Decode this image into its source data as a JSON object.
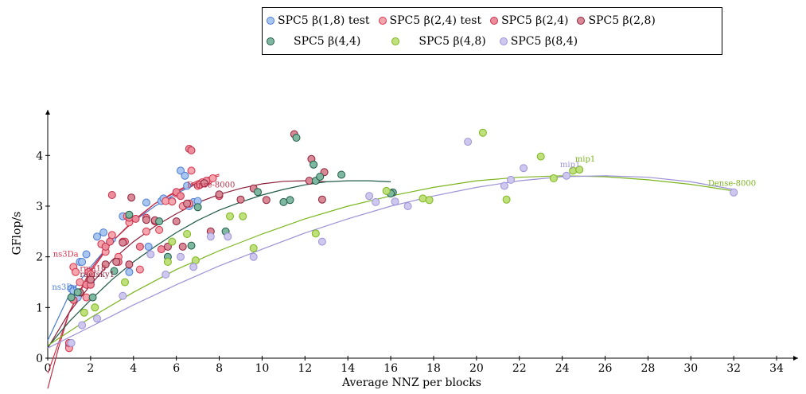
{
  "chart_data": {
    "type": "scatter",
    "title": "",
    "xlabel": "Average NNZ per blocks",
    "ylabel": "GFlop/s",
    "xlim": [
      0,
      35
    ],
    "ylim": [
      0,
      4.9
    ],
    "xticks": [
      0,
      2,
      4,
      6,
      8,
      10,
      12,
      14,
      16,
      18,
      20,
      22,
      24,
      26,
      28,
      30,
      32,
      34
    ],
    "yticks": [
      0,
      1,
      2,
      3,
      4
    ],
    "grid": false,
    "legend_position": "top",
    "series": [
      {
        "name": "SPC5 β(1,8) test",
        "color": "#4a7bd0",
        "fill": "#a9c6f0",
        "points": [
          [
            1,
            0.25
          ],
          [
            1.1,
            1.37
          ],
          [
            1.2,
            1.33
          ],
          [
            1.3,
            1.18
          ],
          [
            1.4,
            1.2
          ],
          [
            1.5,
            1.9
          ],
          [
            1.6,
            1.9
          ],
          [
            1.8,
            2.05
          ],
          [
            2,
            1.5
          ],
          [
            2.3,
            2.4
          ],
          [
            2.5,
            2.25
          ],
          [
            2.6,
            2.48
          ],
          [
            3,
            2.35
          ],
          [
            3.5,
            2.8
          ],
          [
            3.8,
            1.7
          ],
          [
            4.6,
            3.07
          ],
          [
            4.7,
            2.2
          ],
          [
            5.3,
            3.1
          ],
          [
            5.4,
            3.15
          ],
          [
            5.8,
            3.1
          ],
          [
            6.2,
            3.7
          ],
          [
            6.4,
            3.6
          ],
          [
            6.5,
            3.4
          ],
          [
            6.6,
            3.0
          ],
          [
            6.8,
            3.08
          ],
          [
            7.0,
            3.1
          ]
        ],
        "fit": [
          [
            0,
            0.35
          ],
          [
            1,
            1.25
          ],
          [
            2,
            1.8
          ],
          [
            3,
            2.3
          ],
          [
            4,
            2.7
          ],
          [
            5,
            3.0
          ],
          [
            6,
            3.25
          ],
          [
            7,
            3.45
          ]
        ]
      },
      {
        "name": "SPC5 β(2,4) test",
        "color": "#d8324a",
        "fill": "#f4a5ae",
        "points": [
          [
            1,
            0.2
          ],
          [
            1.2,
            1.8
          ],
          [
            1.3,
            1.7
          ],
          [
            1.5,
            1.5
          ],
          [
            1.8,
            1.2
          ],
          [
            1.9,
            1.7
          ],
          [
            2,
            1.65
          ],
          [
            2.5,
            2.25
          ],
          [
            2.7,
            2.1
          ],
          [
            3,
            2.43
          ],
          [
            3.3,
            2.0
          ],
          [
            3.5,
            2.3
          ],
          [
            3.7,
            2.8
          ],
          [
            3.8,
            2.68
          ],
          [
            4.3,
            1.75
          ],
          [
            4.6,
            2.5
          ],
          [
            5.2,
            2.53
          ],
          [
            5.5,
            3.1
          ],
          [
            5.8,
            3.09
          ],
          [
            6.0,
            3.25
          ],
          [
            6.3,
            3.0
          ],
          [
            6.6,
            3.05
          ],
          [
            6.7,
            3.7
          ],
          [
            7.0,
            3.4
          ],
          [
            7.2,
            3.47
          ],
          [
            7.5,
            3.5
          ],
          [
            7.7,
            3.55
          ]
        ],
        "fit": [
          [
            0,
            -0.3
          ],
          [
            0.5,
            0.3
          ],
          [
            1,
            0.9
          ],
          [
            2,
            1.7
          ],
          [
            3,
            2.3
          ],
          [
            4,
            2.7
          ],
          [
            5,
            3.05
          ],
          [
            6,
            3.3
          ],
          [
            7,
            3.5
          ],
          [
            8,
            3.63
          ]
        ]
      },
      {
        "name": "SPC5 β(2,4)",
        "color": "#c0304a",
        "fill": "#ee8c9c",
        "points": [
          [
            1,
            0.3
          ],
          [
            1.2,
            1.15
          ],
          [
            1.5,
            1.3
          ],
          [
            1.8,
            1.45
          ],
          [
            2,
            1.45
          ],
          [
            2.7,
            2.2
          ],
          [
            2.9,
            2.3
          ],
          [
            3,
            3.22
          ],
          [
            3.3,
            1.9
          ],
          [
            3.6,
            2.3
          ],
          [
            3.8,
            2.77
          ],
          [
            4.1,
            2.75
          ],
          [
            4.3,
            2.2
          ],
          [
            4.6,
            2.77
          ],
          [
            5.0,
            2.7
          ],
          [
            5.3,
            2.15
          ],
          [
            6.0,
            3.28
          ],
          [
            6.2,
            3.2
          ],
          [
            6.6,
            4.13
          ],
          [
            6.7,
            4.1
          ],
          [
            7.1,
            3.42
          ],
          [
            7.3,
            3.45
          ],
          [
            7.4,
            3.5
          ],
          [
            8,
            3.2
          ]
        ],
        "fit": [
          [
            0,
            -0.6
          ],
          [
            0.5,
            0.2
          ],
          [
            1,
            0.9
          ],
          [
            2,
            1.75
          ],
          [
            3,
            2.3
          ],
          [
            4,
            2.72
          ],
          [
            5,
            3.05
          ],
          [
            6,
            3.28
          ],
          [
            7,
            3.47
          ],
          [
            8,
            3.6
          ]
        ]
      },
      {
        "name": "SPC5 β(2,8)",
        "color": "#8b1f3a",
        "fill": "#d98a96",
        "points": [
          [
            1.5,
            1.3
          ],
          [
            2,
            1.55
          ],
          [
            2.7,
            1.85
          ],
          [
            3.2,
            1.9
          ],
          [
            3.5,
            2.28
          ],
          [
            3.8,
            1.85
          ],
          [
            3.9,
            3.17
          ],
          [
            4.6,
            2.73
          ],
          [
            5.0,
            2.72
          ],
          [
            5.6,
            2.2
          ],
          [
            6.0,
            2.7
          ],
          [
            6.3,
            2.2
          ],
          [
            6.5,
            3.05
          ],
          [
            7.3,
            3.45
          ],
          [
            7.6,
            2.5
          ],
          [
            8.0,
            3.23
          ],
          [
            9.0,
            3.13
          ],
          [
            9.6,
            3.35
          ],
          [
            10.2,
            3.12
          ],
          [
            11.5,
            4.42
          ],
          [
            12.3,
            3.93
          ],
          [
            12.8,
            3.13
          ],
          [
            12.9,
            3.67
          ],
          [
            12.2,
            3.5
          ]
        ],
        "fit": [
          [
            0,
            0.2
          ],
          [
            1,
            0.9
          ],
          [
            2,
            1.45
          ],
          [
            3,
            1.93
          ],
          [
            4,
            2.3
          ],
          [
            5,
            2.6
          ],
          [
            6,
            2.85
          ],
          [
            7,
            3.07
          ],
          [
            8,
            3.23
          ],
          [
            9,
            3.35
          ],
          [
            10,
            3.44
          ],
          [
            11,
            3.49
          ],
          [
            12,
            3.5
          ],
          [
            13,
            3.48
          ]
        ]
      },
      {
        "name": "SPC5 β(4,4)",
        "color": "#1f5a47",
        "fill": "#7fb8a0",
        "points": [
          [
            1.1,
            1.2
          ],
          [
            1.4,
            1.3
          ],
          [
            2.1,
            1.2
          ],
          [
            3.1,
            1.72
          ],
          [
            3.8,
            2.83
          ],
          [
            5.2,
            2.7
          ],
          [
            5.6,
            2.0
          ],
          [
            6.7,
            2.22
          ],
          [
            7.0,
            2.98
          ],
          [
            8.3,
            2.5
          ],
          [
            9.8,
            3.28
          ],
          [
            11.3,
            3.12
          ],
          [
            11.0,
            3.08
          ],
          [
            11.6,
            4.35
          ],
          [
            12.4,
            3.82
          ],
          [
            12.5,
            3.5
          ],
          [
            12.7,
            3.58
          ],
          [
            13.7,
            3.62
          ],
          [
            16.1,
            3.27
          ],
          [
            16.0,
            3.25
          ]
        ],
        "fit": [
          [
            0,
            0.22
          ],
          [
            1,
            0.72
          ],
          [
            2,
            1.15
          ],
          [
            3,
            1.55
          ],
          [
            4,
            1.9
          ],
          [
            5,
            2.2
          ],
          [
            6,
            2.48
          ],
          [
            7,
            2.72
          ],
          [
            8,
            2.92
          ],
          [
            9,
            3.08
          ],
          [
            10,
            3.22
          ],
          [
            11,
            3.33
          ],
          [
            12,
            3.42
          ],
          [
            13,
            3.48
          ],
          [
            14,
            3.5
          ],
          [
            15,
            3.5
          ],
          [
            16,
            3.48
          ]
        ]
      },
      {
        "name": "SPC5 β(4,8)",
        "color": "#7ab51e",
        "fill": "#bfe07a",
        "points": [
          [
            1.7,
            0.9
          ],
          [
            2.2,
            1.0
          ],
          [
            3.6,
            1.5
          ],
          [
            5.6,
            1.9
          ],
          [
            5.8,
            2.3
          ],
          [
            6.5,
            2.45
          ],
          [
            6.9,
            1.93
          ],
          [
            8.5,
            2.8
          ],
          [
            9.1,
            2.8
          ],
          [
            9.6,
            2.17
          ],
          [
            12.5,
            2.46
          ],
          [
            15.8,
            3.3
          ],
          [
            17.5,
            3.15
          ],
          [
            17.8,
            3.12
          ],
          [
            20.3,
            4.45
          ],
          [
            21.4,
            3.13
          ],
          [
            23.0,
            3.98
          ],
          [
            23.6,
            3.55
          ],
          [
            24.5,
            3.7
          ],
          [
            24.8,
            3.72
          ]
        ],
        "fit": [
          [
            0,
            0.25
          ],
          [
            2,
            0.8
          ],
          [
            4,
            1.3
          ],
          [
            6,
            1.75
          ],
          [
            8,
            2.12
          ],
          [
            10,
            2.45
          ],
          [
            12,
            2.75
          ],
          [
            14,
            3.0
          ],
          [
            16,
            3.2
          ],
          [
            18,
            3.37
          ],
          [
            20,
            3.5
          ],
          [
            22,
            3.57
          ],
          [
            24,
            3.6
          ],
          [
            26,
            3.58
          ],
          [
            28,
            3.52
          ],
          [
            30,
            3.43
          ],
          [
            32,
            3.3
          ]
        ]
      },
      {
        "name": "SPC5 β(8,4)",
        "color": "#9d92d6",
        "fill": "#cec8ee",
        "points": [
          [
            1.1,
            0.3
          ],
          [
            1.6,
            0.65
          ],
          [
            2.3,
            0.78
          ],
          [
            3.5,
            1.23
          ],
          [
            4.8,
            2.05
          ],
          [
            5.5,
            1.65
          ],
          [
            6.2,
            2.0
          ],
          [
            6.8,
            1.8
          ],
          [
            7.6,
            2.4
          ],
          [
            8.4,
            2.4
          ],
          [
            9.6,
            2.0
          ],
          [
            12.8,
            2.3
          ],
          [
            15.0,
            3.2
          ],
          [
            15.3,
            3.08
          ],
          [
            16.2,
            3.09
          ],
          [
            16.8,
            3.0
          ],
          [
            19.6,
            4.27
          ],
          [
            21.3,
            3.4
          ],
          [
            21.6,
            3.52
          ],
          [
            22.2,
            3.75
          ],
          [
            24.2,
            3.6
          ],
          [
            32.0,
            3.27
          ]
        ],
        "fit": [
          [
            0,
            0.2
          ],
          [
            2,
            0.62
          ],
          [
            4,
            1.05
          ],
          [
            6,
            1.45
          ],
          [
            8,
            1.82
          ],
          [
            10,
            2.15
          ],
          [
            12,
            2.47
          ],
          [
            14,
            2.75
          ],
          [
            16,
            3.0
          ],
          [
            18,
            3.2
          ],
          [
            20,
            3.37
          ],
          [
            22,
            3.5
          ],
          [
            24,
            3.58
          ],
          [
            26,
            3.6
          ],
          [
            28,
            3.57
          ],
          [
            30,
            3.48
          ],
          [
            32,
            3.33
          ]
        ]
      }
    ],
    "annotations": [
      {
        "text": "ns3Da",
        "x": 0.25,
        "y": 2.0,
        "color": "#d8324a"
      },
      {
        "text": "ns3Da",
        "x": 0.2,
        "y": 1.35,
        "color": "#4a7bd0"
      },
      {
        "text": "rma10",
        "x": 1.5,
        "y": 1.72,
        "color": "#c0304a"
      },
      {
        "text": "raefsky1",
        "x": 1.5,
        "y": 1.6,
        "color": "#8b1f3a"
      },
      {
        "text": "Dense-8000",
        "x": 6.5,
        "y": 3.37,
        "color": "#c0304a"
      },
      {
        "text": "Dense-8000",
        "x": 30.8,
        "y": 3.4,
        "color": "#7ab51e"
      },
      {
        "text": "mip1",
        "x": 23.9,
        "y": 3.77,
        "color": "#9d92d6"
      },
      {
        "text": "mip1",
        "x": 24.6,
        "y": 3.88,
        "color": "#7ab51e"
      }
    ]
  }
}
